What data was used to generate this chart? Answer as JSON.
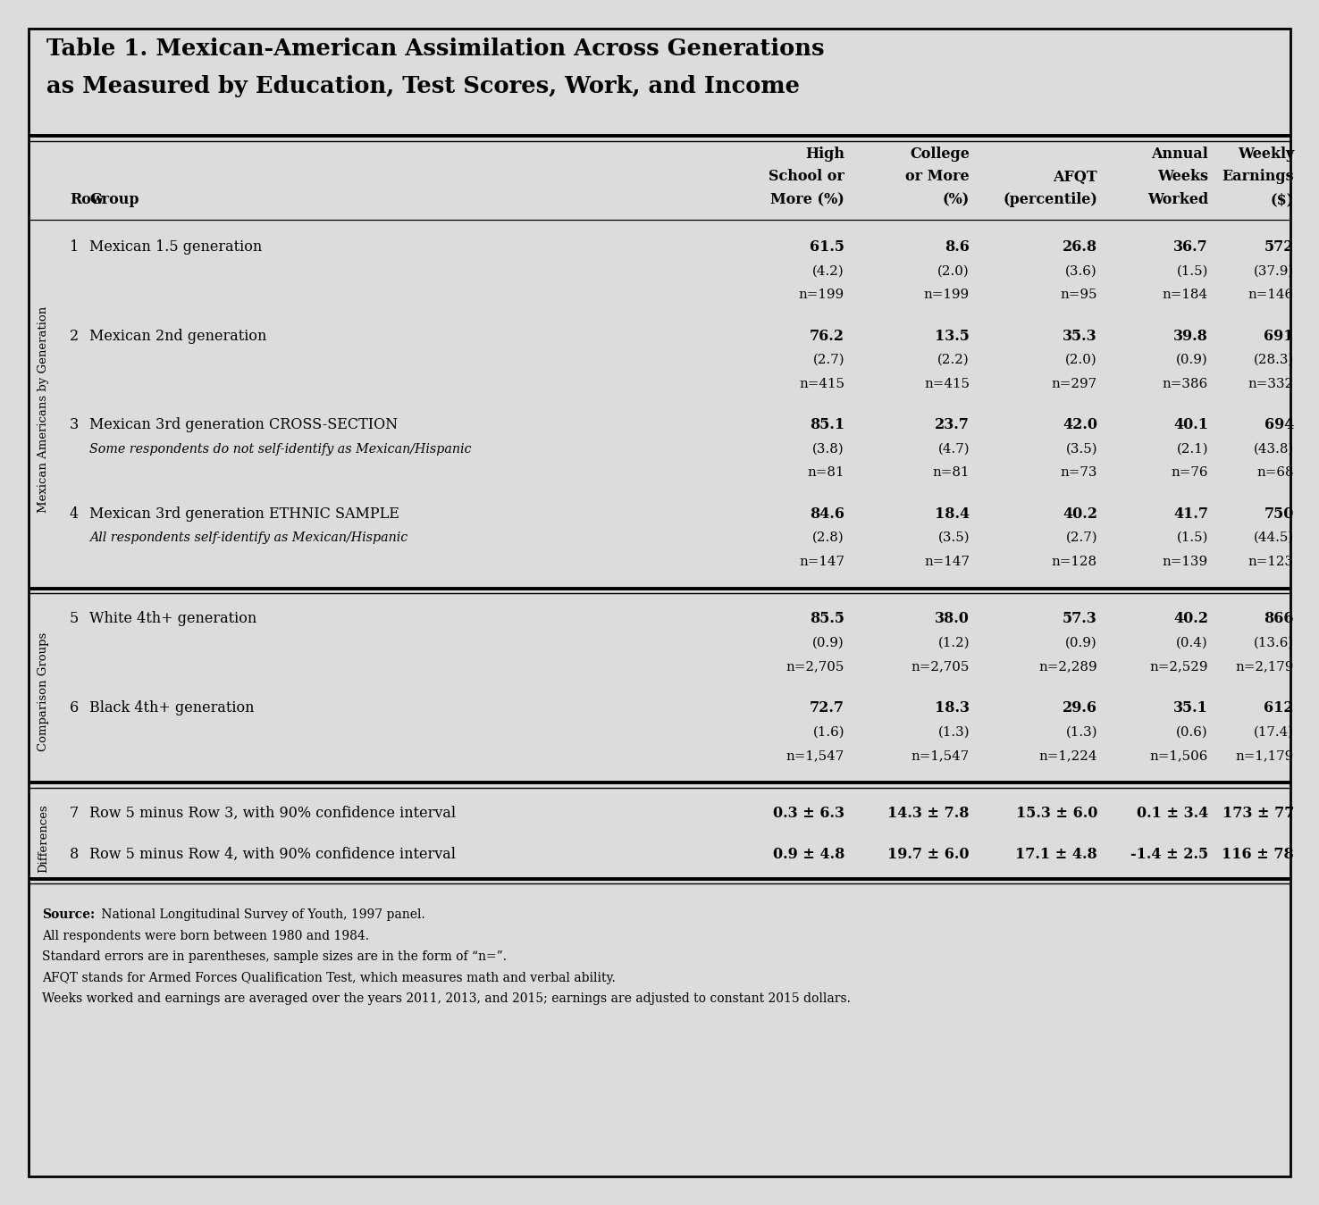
{
  "title_line1": "Table 1. Mexican-American Assimilation Across Generations",
  "title_line2": "as Measured by Education, Test Scores, Work, and Income",
  "bg_color": "#dcdcdc",
  "col_headers_line1": [
    "High",
    "College",
    "",
    "Annual",
    "Weekly"
  ],
  "col_headers_line2": [
    "School or",
    "or More",
    "AFQT",
    "Weeks",
    "Earnings"
  ],
  "col_headers_line3": [
    "More (%)",
    "(%)",
    "(percentile)",
    "Worked",
    "($)"
  ],
  "row_label": "Row",
  "group_label": "Group",
  "sections": [
    {
      "label": "Mexican Americans by Generation",
      "rows": [
        {
          "num": "1",
          "group_line1": "Mexican 1.5 generation",
          "group_line2": "",
          "group_italic": false,
          "main_vals": [
            "61.5",
            "8.6",
            "26.8",
            "36.7",
            "572"
          ],
          "se_vals": [
            "(4.2)",
            "(2.0)",
            "(3.6)",
            "(1.5)",
            "(37.9)"
          ],
          "n_vals": [
            "n=199",
            "n=199",
            "n=95",
            "n=184",
            "n=146"
          ]
        },
        {
          "num": "2",
          "group_line1": "Mexican 2nd generation",
          "group_line2": "",
          "group_italic": false,
          "main_vals": [
            "76.2",
            "13.5",
            "35.3",
            "39.8",
            "691"
          ],
          "se_vals": [
            "(2.7)",
            "(2.2)",
            "(2.0)",
            "(0.9)",
            "(28.3)"
          ],
          "n_vals": [
            "n=415",
            "n=415",
            "n=297",
            "n=386",
            "n=332"
          ]
        },
        {
          "num": "3",
          "group_line1": "Mexican 3rd generation CROSS-SECTION",
          "group_line2": "Some respondents do not self-identify as Mexican/Hispanic",
          "group_italic": true,
          "main_vals": [
            "85.1",
            "23.7",
            "42.0",
            "40.1",
            "694"
          ],
          "se_vals": [
            "(3.8)",
            "(4.7)",
            "(3.5)",
            "(2.1)",
            "(43.8)"
          ],
          "n_vals": [
            "n=81",
            "n=81",
            "n=73",
            "n=76",
            "n=68"
          ]
        },
        {
          "num": "4",
          "group_line1": "Mexican 3rd generation ETHNIC SAMPLE",
          "group_line2": "All respondents self-identify as Mexican/Hispanic",
          "group_italic": true,
          "main_vals": [
            "84.6",
            "18.4",
            "40.2",
            "41.7",
            "750"
          ],
          "se_vals": [
            "(2.8)",
            "(3.5)",
            "(2.7)",
            "(1.5)",
            "(44.5)"
          ],
          "n_vals": [
            "n=147",
            "n=147",
            "n=128",
            "n=139",
            "n=123"
          ]
        }
      ]
    },
    {
      "label": "Comparison Groups",
      "rows": [
        {
          "num": "5",
          "group_line1": "White 4th+ generation",
          "group_line2": "",
          "group_italic": false,
          "main_vals": [
            "85.5",
            "38.0",
            "57.3",
            "40.2",
            "866"
          ],
          "se_vals": [
            "(0.9)",
            "(1.2)",
            "(0.9)",
            "(0.4)",
            "(13.6)"
          ],
          "n_vals": [
            "n=2,705",
            "n=2,705",
            "n=2,289",
            "n=2,529",
            "n=2,179"
          ]
        },
        {
          "num": "6",
          "group_line1": "Black 4th+ generation",
          "group_line2": "",
          "group_italic": false,
          "main_vals": [
            "72.7",
            "18.3",
            "29.6",
            "35.1",
            "612"
          ],
          "se_vals": [
            "(1.6)",
            "(1.3)",
            "(1.3)",
            "(0.6)",
            "(17.4)"
          ],
          "n_vals": [
            "n=1,547",
            "n=1,547",
            "n=1,224",
            "n=1,506",
            "n=1,179"
          ]
        }
      ]
    },
    {
      "label": "Differences",
      "rows": [
        {
          "num": "7",
          "group_line1": "Row 5 minus Row 3, with 90% confidence interval",
          "group_line2": "",
          "group_italic": false,
          "main_vals": [
            "0.3 ± 6.3",
            "14.3 ± 7.8",
            "15.3 ± 6.0",
            "0.1 ± 3.4",
            "173 ± 77"
          ],
          "se_vals": [],
          "n_vals": []
        },
        {
          "num": "8",
          "group_line1": "Row 5 minus Row 4, with 90% confidence interval",
          "group_line2": "",
          "group_italic": false,
          "main_vals": [
            "0.9 ± 4.8",
            "19.7 ± 6.0",
            "17.1 ± 4.8",
            "-1.4 ± 2.5",
            "116 ± 78"
          ],
          "se_vals": [],
          "n_vals": []
        }
      ]
    }
  ],
  "footnotes": [
    [
      "Source:",
      " National Longitudinal Survey of Youth, 1997 panel."
    ],
    [
      "",
      "All respondents were born between 1980 and 1984."
    ],
    [
      "",
      "Standard errors are in parentheses, sample sizes are in the form of “n=”."
    ],
    [
      "",
      "AFQT stands for Armed Forces Qualification Test, which measures math and verbal ability."
    ],
    [
      "",
      "Weeks worked and earnings are averaged over the years 2011, 2013, and 2015; earnings are adjusted to constant 2015 dollars."
    ]
  ]
}
